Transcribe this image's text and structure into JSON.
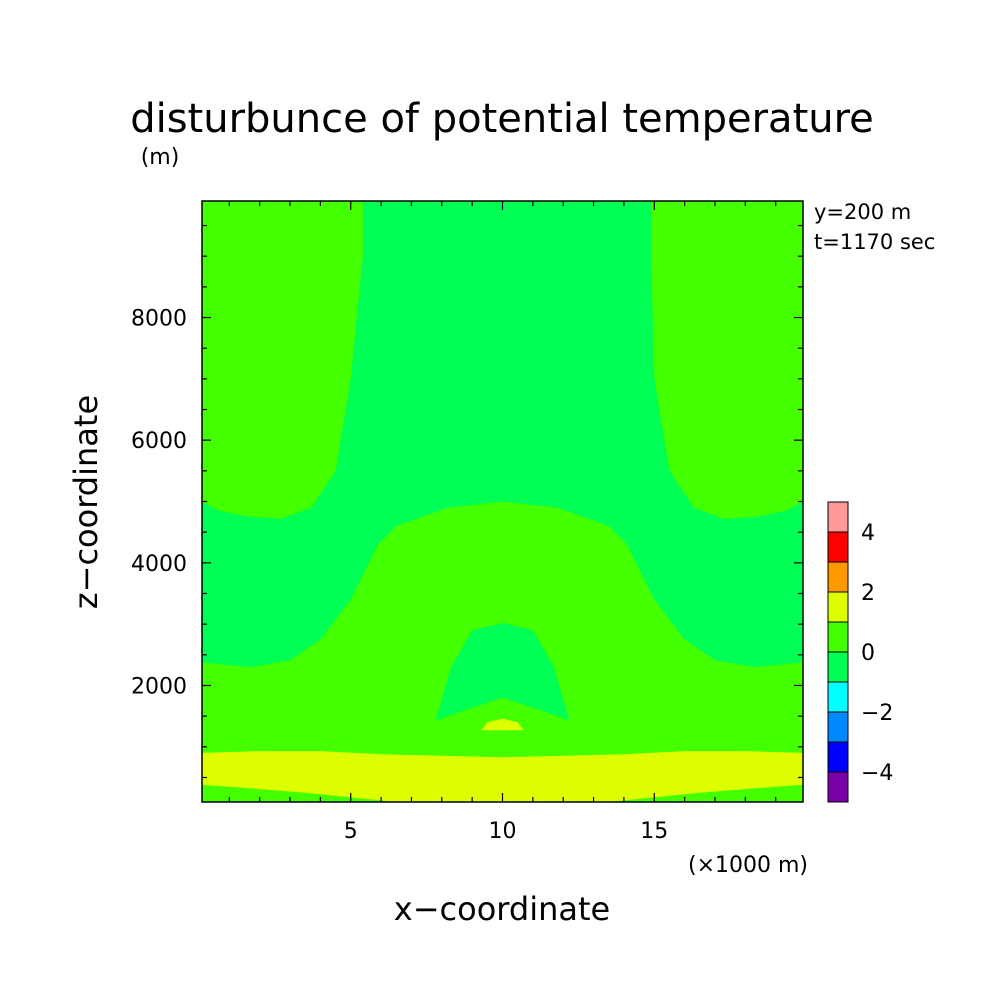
{
  "chart_data": {
    "type": "contour",
    "title": "disturbunce of potential temperature",
    "y_unit": "(m)",
    "xlabel": "x−coordinate",
    "ylabel": "z−coordinate",
    "x_unit": "(×1000 m)",
    "info": [
      "y=200 m",
      "t=1170 sec"
    ],
    "xlim": [
      0.1,
      19.9
    ],
    "ylim": [
      100,
      9900
    ],
    "xticks": [
      {
        "value": 5,
        "label": "5"
      },
      {
        "value": 10,
        "label": "10"
      },
      {
        "value": 15,
        "label": "15"
      }
    ],
    "yticks": [
      {
        "value": 2000,
        "label": "2000"
      },
      {
        "value": 4000,
        "label": "4000"
      },
      {
        "value": 6000,
        "label": "6000"
      },
      {
        "value": 8000,
        "label": "8000"
      }
    ],
    "x_minor_step": 1,
    "y_minor_step": 500,
    "colorbar": {
      "levels": [
        -5,
        -4,
        -3,
        -2,
        -1,
        0,
        1,
        2,
        3,
        4,
        5
      ],
      "colors": [
        "#7a00a8",
        "#0000ff",
        "#0088ff",
        "#00ffff",
        "#00ff55",
        "#44ff00",
        "#ddff00",
        "#ff9900",
        "#ff0000",
        "#ff9999"
      ],
      "tick_labels": [
        {
          "value": -4,
          "label": "−4"
        },
        {
          "value": -2,
          "label": "−2"
        },
        {
          "value": 0,
          "label": "0"
        },
        {
          "value": 2,
          "label": "2"
        },
        {
          "value": 4,
          "label": "4"
        }
      ]
    },
    "regions": [
      {
        "name": "upper-plume-0-1",
        "fill": "#00ff55",
        "polygon": [
          [
            5.4,
            9900
          ],
          [
            14.9,
            9900
          ],
          [
            14.9,
            9000
          ],
          [
            15.0,
            7000
          ],
          [
            15.5,
            5500
          ],
          [
            16.3,
            4900
          ],
          [
            17.3,
            4720
          ],
          [
            18.4,
            4750
          ],
          [
            19.4,
            4860
          ],
          [
            19.9,
            5000
          ],
          [
            19.9,
            2380
          ],
          [
            18.3,
            2300
          ],
          [
            17.0,
            2410
          ],
          [
            16.0,
            2750
          ],
          [
            15.0,
            3400
          ],
          [
            14.1,
            4300
          ],
          [
            13.5,
            4600
          ],
          [
            11.8,
            4900
          ],
          [
            10.0,
            5000
          ],
          [
            8.2,
            4900
          ],
          [
            6.5,
            4600
          ],
          [
            5.9,
            4300
          ],
          [
            5.0,
            3400
          ],
          [
            4.0,
            2750
          ],
          [
            3.0,
            2410
          ],
          [
            1.7,
            2300
          ],
          [
            0.1,
            2380
          ],
          [
            0.1,
            5000
          ],
          [
            0.6,
            4860
          ],
          [
            1.6,
            4750
          ],
          [
            2.7,
            4720
          ],
          [
            3.7,
            4900
          ],
          [
            4.5,
            5500
          ],
          [
            5.0,
            7000
          ],
          [
            5.4,
            9000
          ]
        ]
      },
      {
        "name": "dome-0-1",
        "fill": "#00ff55",
        "polygon": [
          [
            7.8,
            1430
          ],
          [
            8.6,
            1570
          ],
          [
            10.0,
            1800
          ],
          [
            11.4,
            1570
          ],
          [
            12.2,
            1430
          ],
          [
            11.7,
            2300
          ],
          [
            11.0,
            2900
          ],
          [
            10.0,
            3020
          ],
          [
            9.0,
            2900
          ],
          [
            8.3,
            2300
          ]
        ]
      },
      {
        "name": "low-band-1-2",
        "fill": "#ddff00",
        "polygon": [
          [
            0.1,
            900
          ],
          [
            2.0,
            930
          ],
          [
            4.0,
            930
          ],
          [
            6.0,
            880
          ],
          [
            10.0,
            830
          ],
          [
            14.0,
            880
          ],
          [
            16.0,
            930
          ],
          [
            18.0,
            930
          ],
          [
            19.9,
            900
          ],
          [
            19.9,
            380
          ],
          [
            18.5,
            330
          ],
          [
            16.5,
            250
          ],
          [
            14.5,
            150
          ],
          [
            13.5,
            100
          ],
          [
            6.5,
            100
          ],
          [
            5.5,
            150
          ],
          [
            3.5,
            250
          ],
          [
            1.5,
            330
          ],
          [
            0.1,
            380
          ]
        ]
      },
      {
        "name": "core-1-2",
        "fill": "#ddff00",
        "polygon": [
          [
            9.3,
            1270
          ],
          [
            9.5,
            1400
          ],
          [
            10.0,
            1460
          ],
          [
            10.5,
            1400
          ],
          [
            10.7,
            1270
          ]
        ]
      }
    ]
  }
}
